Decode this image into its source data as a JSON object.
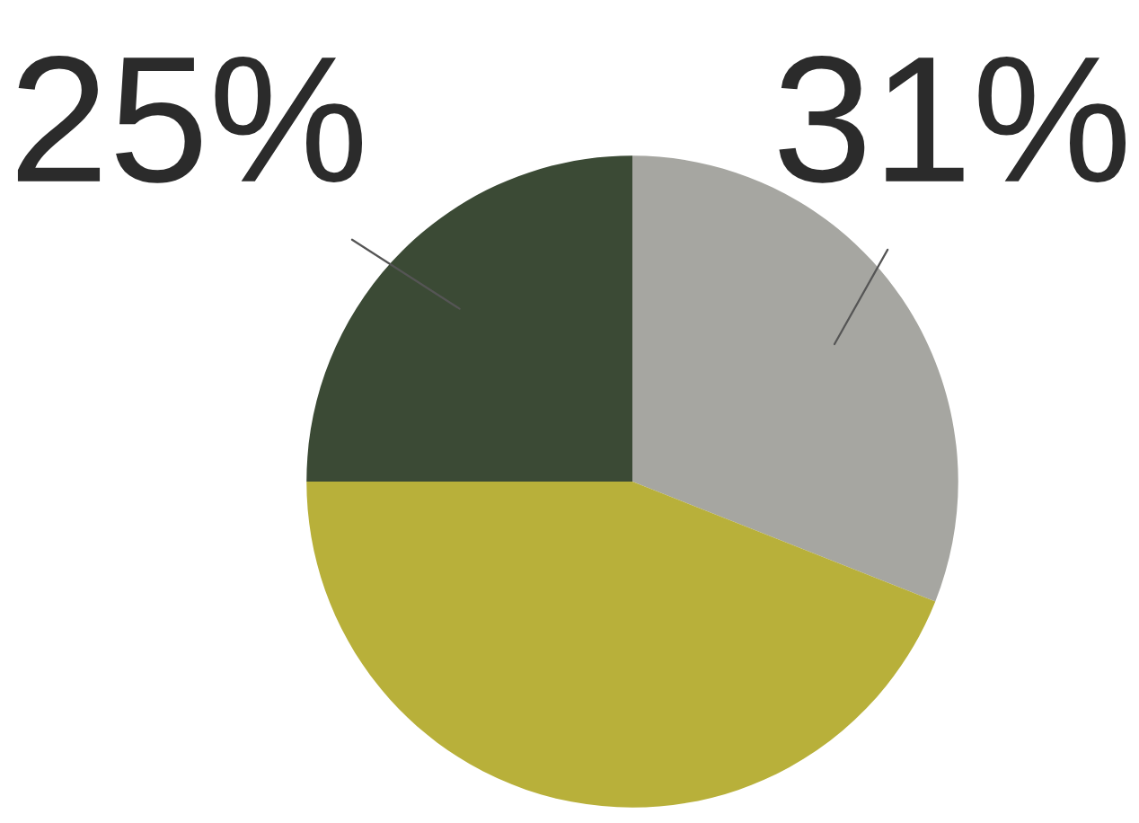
{
  "chart_data": {
    "type": "pie",
    "categories": [
      null,
      null,
      null
    ],
    "values": [
      31,
      44,
      25
    ],
    "colors": [
      "#a6a6a1",
      "#b8b03a",
      "#3b4a35"
    ],
    "value_labels": [
      "31%",
      null,
      "25%"
    ],
    "legend": false
  }
}
